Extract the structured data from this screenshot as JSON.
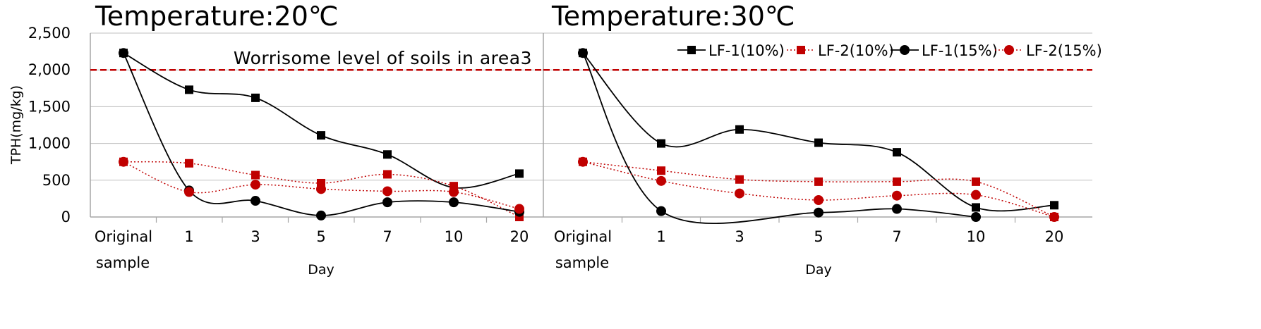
{
  "chart_data": [
    {
      "type": "line",
      "title": "Temperature:20℃",
      "ylabel": "TPH(mg/kg)",
      "xlabel": "Day",
      "categories": [
        "Original sample",
        "1",
        "3",
        "5",
        "7",
        "10",
        "20"
      ],
      "category_lines": [
        [
          "Original",
          "sample"
        ],
        [
          "1"
        ],
        [
          "3"
        ],
        [
          "5"
        ],
        [
          "7"
        ],
        [
          "10"
        ],
        [
          "20"
        ]
      ],
      "ylim": [
        0,
        2500
      ],
      "yticks": [
        0,
        500,
        1000,
        1500,
        2000,
        2500
      ],
      "ytick_labels": [
        "0",
        "500",
        "1,000",
        "1,500",
        "2,000",
        "2,500"
      ],
      "grid": true,
      "reference_line": {
        "value": 2000,
        "label": "Worrisome level of soils in area3",
        "color": "#c00000"
      },
      "series": [
        {
          "name": "LF-1(10%)",
          "values": [
            2230,
            1730,
            1620,
            1110,
            850,
            400,
            590
          ]
        },
        {
          "name": "LF-2(10%)",
          "values": [
            750,
            730,
            570,
            460,
            580,
            420,
            0
          ]
        },
        {
          "name": "LF-1(15%)",
          "values": [
            2230,
            360,
            220,
            20,
            200,
            200,
            70
          ]
        },
        {
          "name": "LF-2(15%)",
          "values": [
            750,
            340,
            440,
            380,
            350,
            340,
            110
          ]
        }
      ]
    },
    {
      "type": "line",
      "title": "Temperature:30℃",
      "xlabel": "Day",
      "categories": [
        "Original sample",
        "1",
        "3",
        "5",
        "7",
        "10",
        "20"
      ],
      "category_lines": [
        [
          "Original",
          "sample"
        ],
        [
          "1"
        ],
        [
          "3"
        ],
        [
          "5"
        ],
        [
          "7"
        ],
        [
          "10"
        ],
        [
          "20"
        ]
      ],
      "ylim": [
        0,
        2500
      ],
      "grid": true,
      "reference_line": {
        "value": 2000,
        "color": "#c00000"
      },
      "legend": {
        "placement": "top-right",
        "entries": [
          "LF-1(10%)",
          "LF-2(10%)",
          "LF-1(15%)",
          "LF-2(15%)"
        ]
      },
      "series": [
        {
          "name": "LF-1(10%)",
          "values": [
            2230,
            1000,
            1190,
            1010,
            880,
            130,
            160
          ]
        },
        {
          "name": "LF-2(10%)",
          "values": [
            750,
            630,
            510,
            480,
            480,
            480,
            0
          ]
        },
        {
          "name": "LF-1(15%)",
          "values": [
            2230,
            80,
            null,
            60,
            110,
            0,
            null
          ]
        },
        {
          "name": "LF-2(15%)",
          "values": [
            750,
            490,
            320,
            230,
            290,
            300,
            0
          ]
        }
      ]
    }
  ],
  "series_styles": [
    {
      "color": "#000000",
      "marker": "square",
      "line": "solid"
    },
    {
      "color": "#c00000",
      "marker": "square",
      "line": "dotted"
    },
    {
      "color": "#000000",
      "marker": "circle",
      "line": "solid"
    },
    {
      "color": "#c00000",
      "marker": "circle",
      "line": "dotted"
    }
  ],
  "axis_color": "#a6a6a6",
  "grid_color": "#bfbfbf"
}
